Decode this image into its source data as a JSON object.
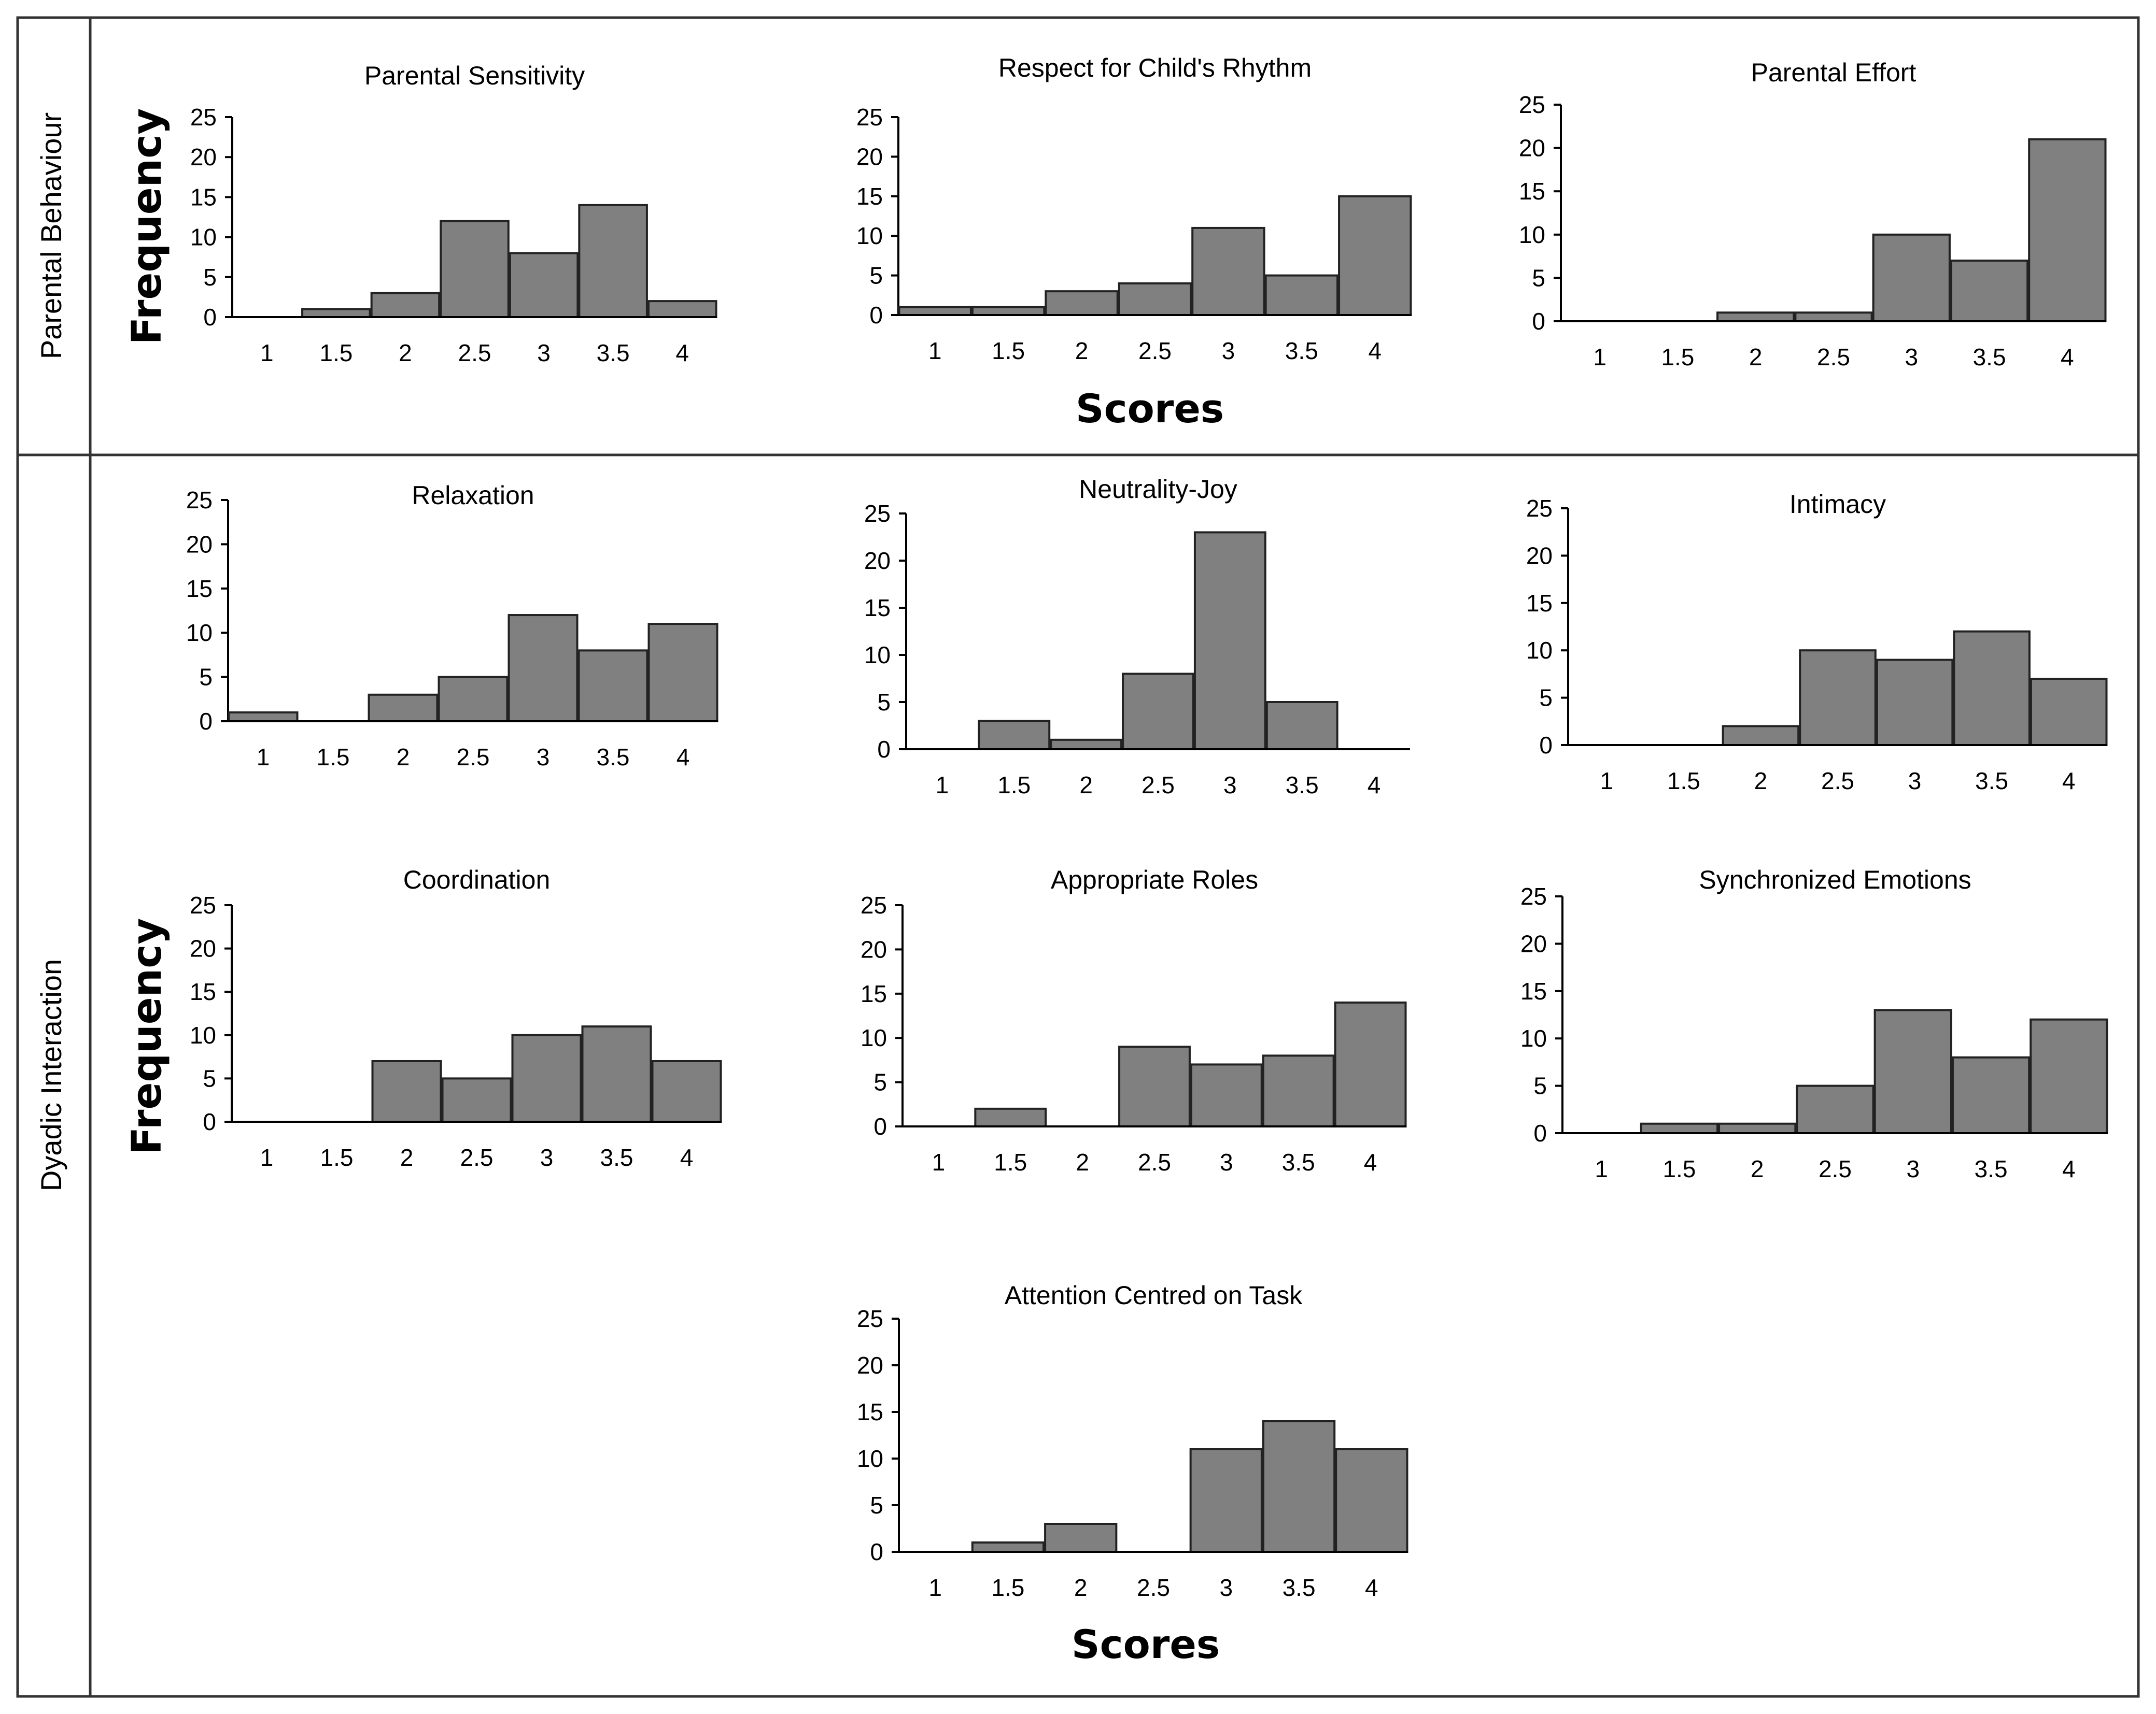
{
  "sections": {
    "top_label": "Parental Behaviour",
    "bottom_label": "Dyadic Interaction"
  },
  "axis_labels": {
    "frequency": "Frequency",
    "scores": "Scores"
  },
  "colors": {
    "bar_fill": "#808080",
    "bar_stroke": "#222222",
    "axis": "#000000",
    "frame": "#333333",
    "text": "#000000"
  },
  "chart_data": [
    {
      "type": "bar",
      "title": "Parental Sensitivity",
      "categories": [
        "1",
        "1.5",
        "2",
        "2.5",
        "3",
        "3.5",
        "4"
      ],
      "values": [
        0,
        1,
        3,
        12,
        8,
        14,
        2
      ],
      "ylim": [
        0,
        25
      ],
      "yticks": [
        0,
        5,
        10,
        15,
        20,
        25
      ],
      "xlabel": "",
      "ylabel": "Frequency"
    },
    {
      "type": "bar",
      "title": "Respect for Child's Rhythm",
      "categories": [
        "1",
        "1.5",
        "2",
        "2.5",
        "3",
        "3.5",
        "4"
      ],
      "values": [
        1,
        1,
        3,
        4,
        11,
        5,
        15
      ],
      "ylim": [
        0,
        25
      ],
      "yticks": [
        0,
        5,
        10,
        15,
        20,
        25
      ],
      "xlabel": "Scores",
      "ylabel": ""
    },
    {
      "type": "bar",
      "title": "Parental Effort",
      "categories": [
        "1",
        "1.5",
        "2",
        "2.5",
        "3",
        "3.5",
        "4"
      ],
      "values": [
        0,
        0,
        1,
        1,
        10,
        7,
        21
      ],
      "ylim": [
        0,
        25
      ],
      "yticks": [
        0,
        5,
        10,
        15,
        20,
        25
      ],
      "xlabel": "",
      "ylabel": ""
    },
    {
      "type": "bar",
      "title": "Relaxation",
      "categories": [
        "1",
        "1.5",
        "2",
        "2.5",
        "3",
        "3.5",
        "4"
      ],
      "values": [
        1,
        0,
        3,
        5,
        12,
        8,
        11
      ],
      "ylim": [
        0,
        25
      ],
      "yticks": [
        0,
        5,
        10,
        15,
        20,
        25
      ],
      "xlabel": "",
      "ylabel": ""
    },
    {
      "type": "bar",
      "title": "Neutrality-Joy",
      "categories": [
        "1",
        "1.5",
        "2",
        "2.5",
        "3",
        "3.5",
        "4"
      ],
      "values": [
        0,
        3,
        1,
        8,
        23,
        5,
        0
      ],
      "ylim": [
        0,
        25
      ],
      "yticks": [
        0,
        5,
        10,
        15,
        20,
        25
      ],
      "xlabel": "",
      "ylabel": ""
    },
    {
      "type": "bar",
      "title": "Intimacy",
      "categories": [
        "1",
        "1.5",
        "2",
        "2.5",
        "3",
        "3.5",
        "4"
      ],
      "values": [
        0,
        0,
        2,
        10,
        9,
        12,
        7
      ],
      "ylim": [
        0,
        25
      ],
      "yticks": [
        0,
        5,
        10,
        15,
        20,
        25
      ],
      "xlabel": "",
      "ylabel": ""
    },
    {
      "type": "bar",
      "title": "Coordination",
      "categories": [
        "1",
        "1.5",
        "2",
        "2.5",
        "3",
        "3.5",
        "4"
      ],
      "values": [
        0,
        0,
        7,
        5,
        10,
        11,
        7
      ],
      "ylim": [
        0,
        25
      ],
      "yticks": [
        0,
        5,
        10,
        15,
        20,
        25
      ],
      "xlabel": "",
      "ylabel": "Frequency"
    },
    {
      "type": "bar",
      "title": "Appropriate Roles",
      "categories": [
        "1",
        "1.5",
        "2",
        "2.5",
        "3",
        "3.5",
        "4"
      ],
      "values": [
        0,
        2,
        0,
        9,
        7,
        8,
        14
      ],
      "ylim": [
        0,
        25
      ],
      "yticks": [
        0,
        5,
        10,
        15,
        20,
        25
      ],
      "xlabel": "",
      "ylabel": ""
    },
    {
      "type": "bar",
      "title": "Synchronized Emotions",
      "categories": [
        "1",
        "1.5",
        "2",
        "2.5",
        "3",
        "3.5",
        "4"
      ],
      "values": [
        0,
        1,
        1,
        5,
        13,
        8,
        12
      ],
      "ylim": [
        0,
        25
      ],
      "yticks": [
        0,
        5,
        10,
        15,
        20,
        25
      ],
      "xlabel": "",
      "ylabel": ""
    },
    {
      "type": "bar",
      "title": "Attention Centred on Task",
      "categories": [
        "1",
        "1.5",
        "2",
        "2.5",
        "3",
        "3.5",
        "4"
      ],
      "values": [
        0,
        1,
        3,
        0,
        11,
        14,
        11
      ],
      "ylim": [
        0,
        25
      ],
      "yticks": [
        0,
        5,
        10,
        15,
        20,
        25
      ],
      "xlabel": "Scores",
      "ylabel": ""
    }
  ]
}
